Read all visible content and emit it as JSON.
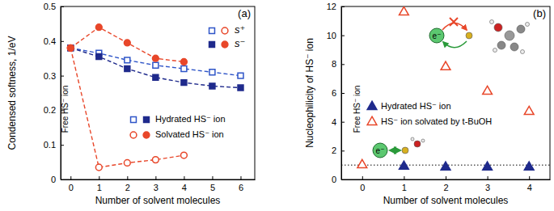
{
  "chart_data": [
    {
      "type": "line",
      "title": "(a)",
      "x_label": "Number of solvent molecules",
      "y_label": "Condensed softness, 1/eV",
      "xlim": [
        -0.35,
        6.5
      ],
      "ylim": [
        0,
        0.5
      ],
      "xticks": [
        0,
        1,
        2,
        3,
        4,
        5,
        6
      ],
      "yticks": [
        0,
        0.1,
        0.2,
        0.3,
        0.4,
        0.5
      ],
      "annotations": [
        "Free HS⁻ ion"
      ],
      "series": [
        {
          "name": "Hydrated HS⁻ ion",
          "label": "s⁺",
          "color": "#2f55c8",
          "marker": "open-square",
          "line_style": "dashed",
          "x": [
            0,
            1,
            2,
            3,
            4,
            5,
            6
          ],
          "values": [
            0.38,
            0.365,
            0.345,
            0.33,
            0.32,
            0.31,
            0.3
          ]
        },
        {
          "name": "Hydrated HS⁻ ion",
          "label": "s⁻",
          "color": "#1f2a8c",
          "marker": "filled-square",
          "line_style": "dashed",
          "x": [
            0,
            1,
            2,
            3,
            4,
            5,
            6
          ],
          "values": [
            0.38,
            0.355,
            0.32,
            0.295,
            0.28,
            0.27,
            0.265
          ]
        },
        {
          "name": "Solvated HS⁻ ion",
          "label": "s⁺",
          "color": "#e8472a",
          "marker": "open-circle",
          "line_style": "dashed",
          "x": [
            0,
            1,
            2,
            3,
            4
          ],
          "values": [
            0.38,
            0.035,
            0.048,
            0.057,
            0.07
          ]
        },
        {
          "name": "Solvated HS⁻ ion",
          "label": "s⁻",
          "color": "#e8472a",
          "marker": "filled-circle",
          "line_style": "dashed",
          "x": [
            0,
            1,
            2,
            3,
            4
          ],
          "values": [
            0.38,
            0.44,
            0.395,
            0.35,
            0.34
          ]
        }
      ]
    },
    {
      "type": "scatter",
      "title": "(b)",
      "x_label": "Number of solvent molecules",
      "y_label": "Nucleophilicity of HS⁻ ion",
      "xlim": [
        -0.5,
        4.5
      ],
      "ylim": [
        0,
        12
      ],
      "xticks": [
        0,
        1,
        2,
        3,
        4
      ],
      "yticks": [
        0,
        2,
        4,
        6,
        8,
        10,
        12
      ],
      "hline": 1,
      "annotations": [
        "Free HS⁻ ion",
        "e⁻",
        "e⁻"
      ],
      "series": [
        {
          "name": "Hydrated HS⁻ ion",
          "color": "#1f2a8c",
          "marker": "filled-triangle",
          "x": [
            1,
            2,
            3,
            4
          ],
          "values": [
            0.9,
            0.85,
            0.85,
            0.85
          ]
        },
        {
          "name": "HS⁻ ion solvated by t-BuOH",
          "color": "#e8472a",
          "marker": "open-triangle",
          "x": [
            0,
            1,
            2,
            3,
            4
          ],
          "values": [
            1.0,
            11.6,
            7.8,
            6.1,
            4.7
          ]
        }
      ]
    }
  ]
}
